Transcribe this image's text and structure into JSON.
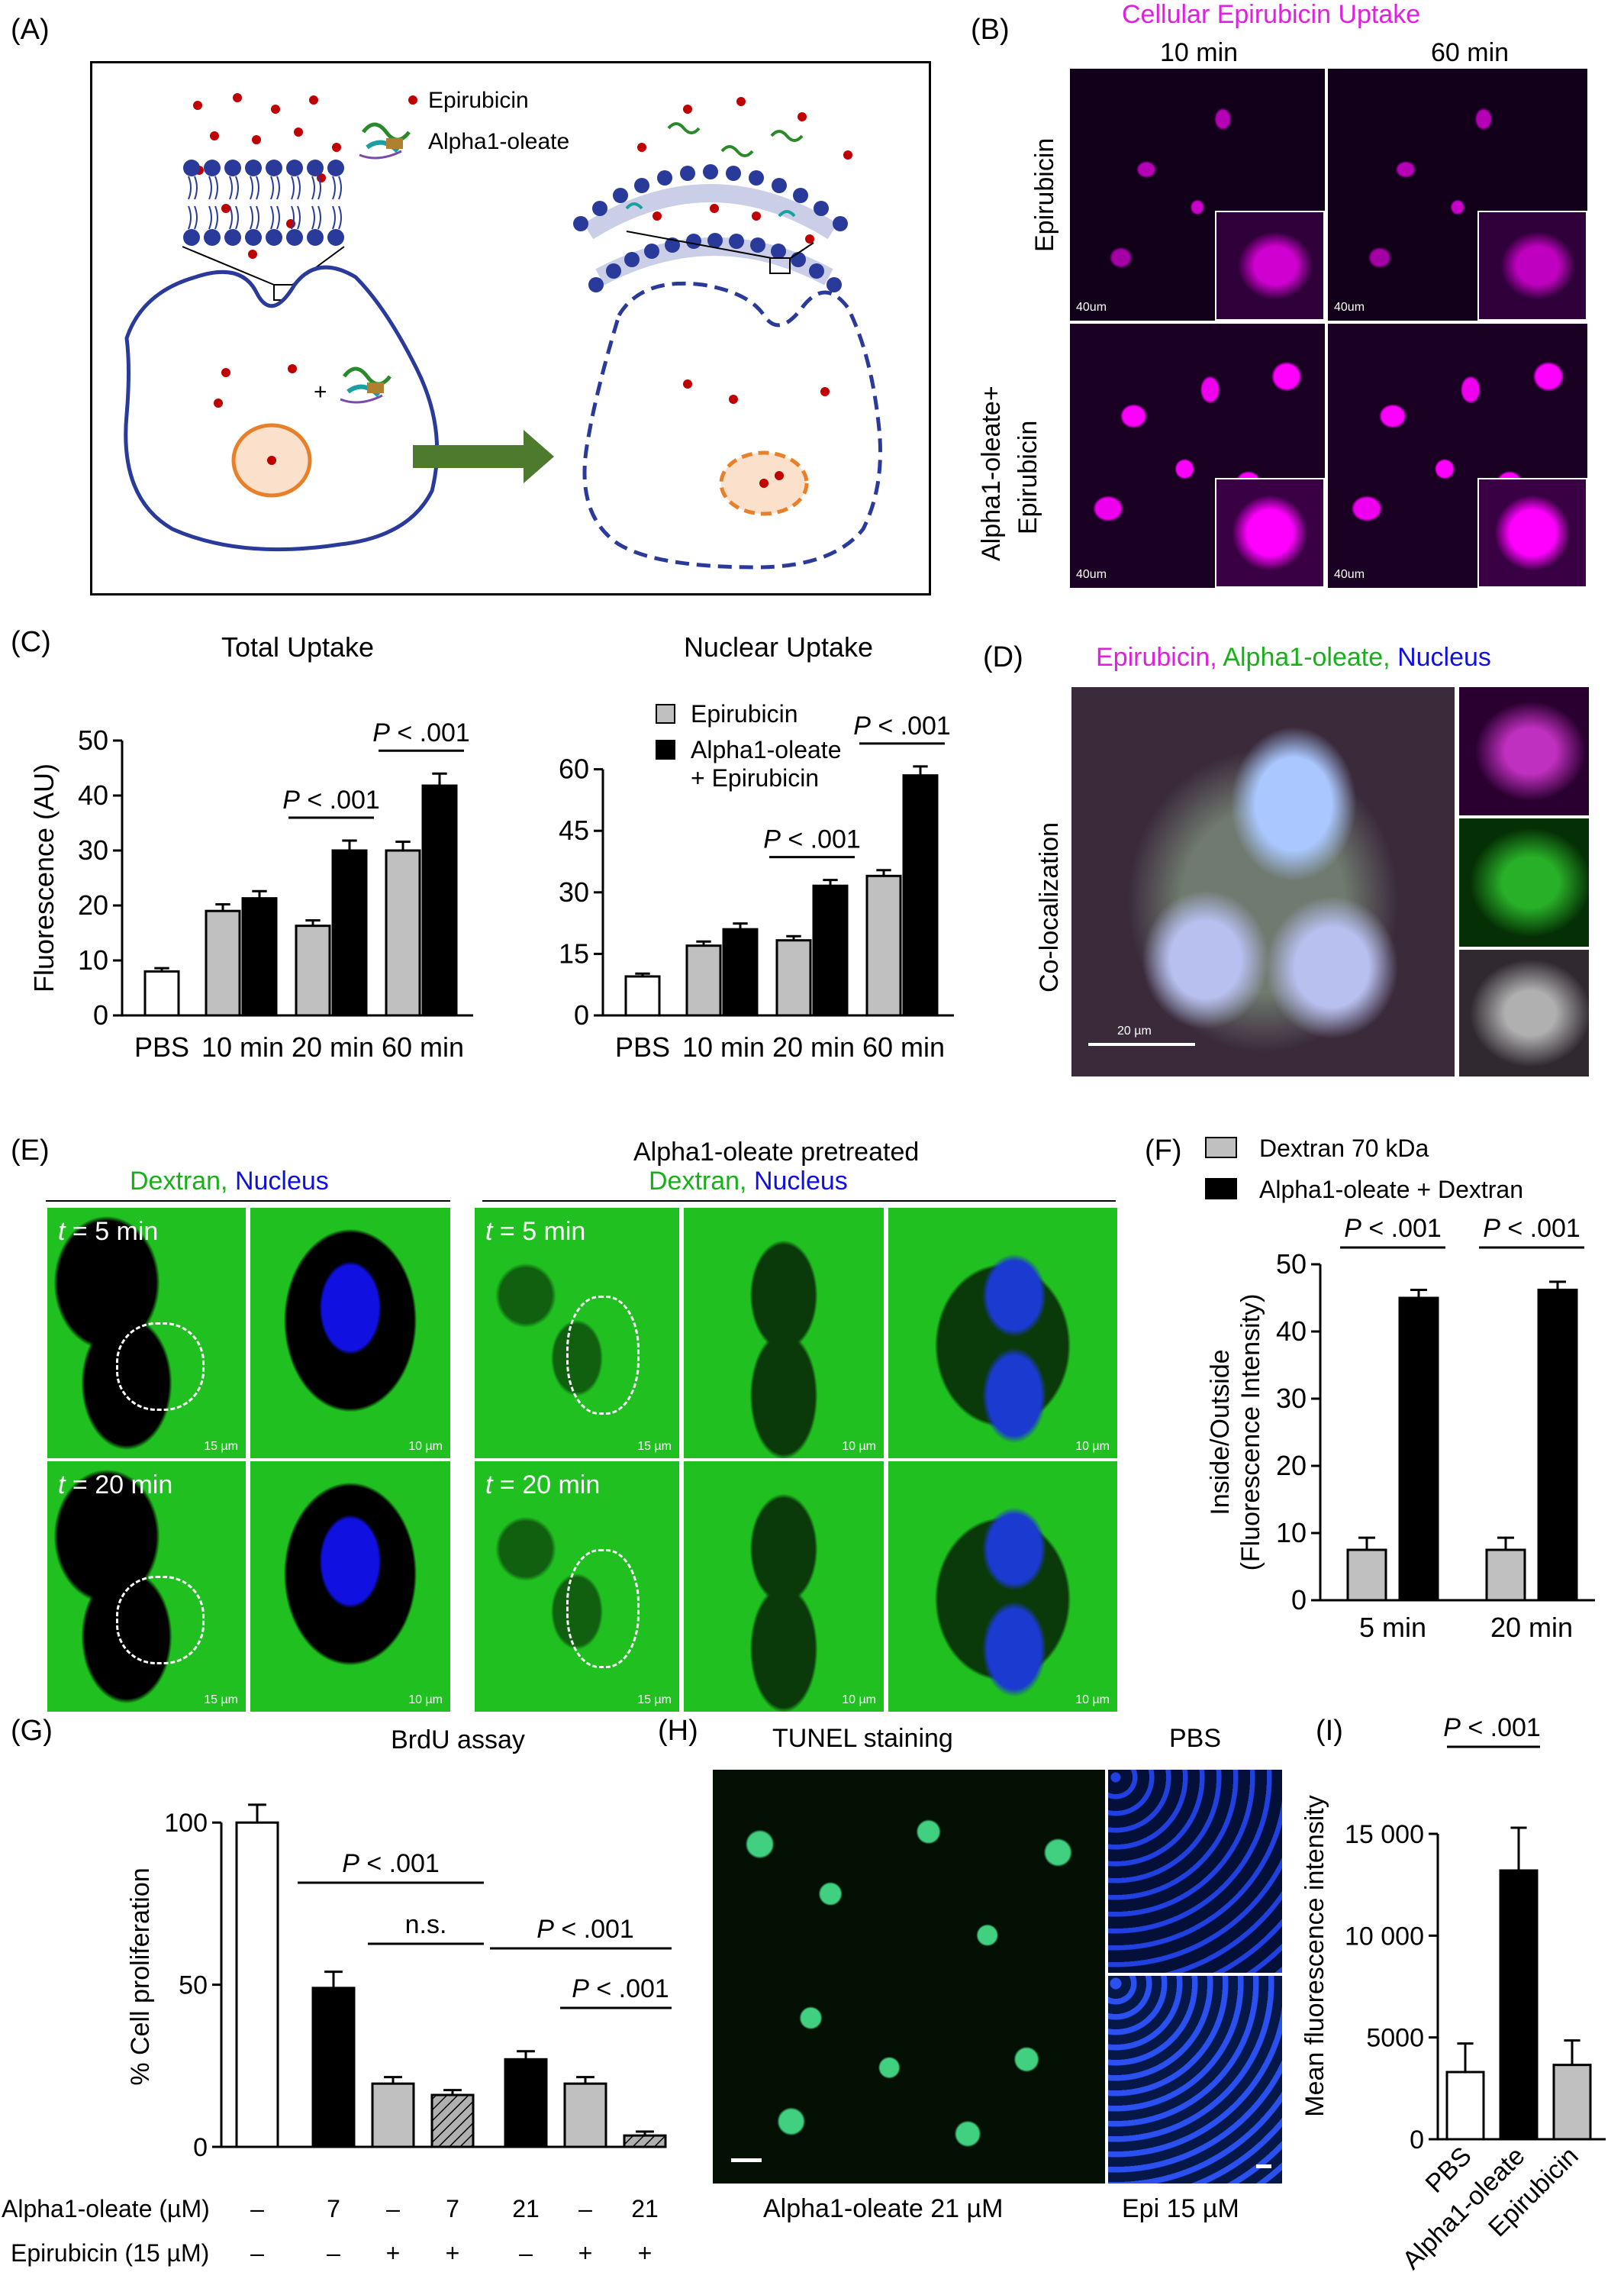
{
  "panel_labels": {
    "a": "(A)",
    "b": "(B)",
    "c": "(C)",
    "d": "(D)",
    "e": "(E)",
    "f": "(F)",
    "g": "(G)",
    "h": "(H)",
    "i": "(I)"
  },
  "panel_a": {
    "legend_epirubicin": "Epirubicin",
    "legend_alpha": "Alpha1-oleate",
    "plus": "+"
  },
  "panel_b": {
    "title": "Cellular Epirubicin Uptake",
    "col1": "10 min",
    "col2": "60 min",
    "row1": "Epirubicin",
    "row2_line1": "Alpha1-oleate+",
    "row2_line2": "Epirubicin",
    "scale": "40um",
    "title_color": "#e020e0"
  },
  "panel_d": {
    "title_epi": "Epirubicin,",
    "title_alpha": "Alpha1-oleate,",
    "title_nucleus": "Nucleus",
    "side": "Co-localization",
    "scale": "20 µm",
    "colors": {
      "epi": "#e020e0",
      "alpha": "#18b018",
      "nucleus": "#1010e0"
    }
  },
  "panel_e": {
    "left_dextran": "Dextran,",
    "left_nucleus": "Nucleus",
    "right_title": "Alpha1-oleate pretreated",
    "right_dextran": "Dextran,",
    "right_nucleus": "Nucleus",
    "t_var": "t",
    "t5": " = 5 min",
    "t20": " = 20 min",
    "scale15": "15 µm",
    "scale10": "10 µm"
  },
  "panel_h": {
    "title": "TUNEL staining",
    "pbs": "PBS",
    "bottom_left": "Alpha1-oleate 21 µM",
    "bottom_right": "Epi 15 µM"
  },
  "chart_data": [
    {
      "id": "C-total",
      "type": "bar",
      "title": "Total Uptake",
      "ylabel": "Fluorescence (AU)",
      "ylim": [
        0,
        50
      ],
      "yticks": [
        0,
        10,
        20,
        30,
        40,
        50
      ],
      "categories": [
        "PBS",
        "10 min",
        "20 min",
        "60 min"
      ],
      "series": [
        {
          "name": "PBS",
          "values": [
            8,
            null,
            null,
            null
          ],
          "errors": [
            0.6,
            null,
            null,
            null
          ],
          "color": "#ffffff"
        },
        {
          "name": "Epirubicin",
          "values": [
            null,
            19,
            16.3,
            30
          ],
          "errors": [
            null,
            1.2,
            1,
            1.6
          ],
          "color": "#c0c0c0"
        },
        {
          "name": "Alpha1-oleate + Epirubicin",
          "values": [
            null,
            21.3,
            30,
            41.8
          ],
          "errors": [
            null,
            1.3,
            1.8,
            2.2
          ],
          "color": "#000000"
        }
      ],
      "annotations": [
        {
          "text": "P < .001",
          "between": [
            "20 min"
          ]
        },
        {
          "text": "P < .001",
          "between": [
            "60 min"
          ]
        }
      ]
    },
    {
      "id": "C-nuclear",
      "type": "bar",
      "title": "Nuclear Uptake",
      "ylabel": "",
      "ylim": [
        0,
        67
      ],
      "yticks": [
        0,
        15,
        30,
        45,
        60
      ],
      "categories": [
        "PBS",
        "10 min",
        "20 min",
        "60 min"
      ],
      "legend": [
        "Epirubicin",
        "Alpha1-oleate",
        "+ Epirubicin"
      ],
      "series": [
        {
          "name": "PBS",
          "values": [
            9.5,
            null,
            null,
            null
          ],
          "errors": [
            0.7,
            null,
            null,
            null
          ],
          "color": "#ffffff"
        },
        {
          "name": "Epirubicin",
          "values": [
            null,
            17,
            18.3,
            34
          ],
          "errors": [
            null,
            1,
            1,
            1.4
          ],
          "color": "#c0c0c0"
        },
        {
          "name": "Alpha1-oleate + Epirubicin",
          "values": [
            null,
            21,
            31.6,
            58.5
          ],
          "errors": [
            null,
            1.4,
            1.4,
            2.2
          ],
          "color": "#000000"
        }
      ],
      "annotations": [
        {
          "text": "P < .001",
          "between": [
            "20 min"
          ]
        },
        {
          "text": "P < .001",
          "between": [
            "60 min"
          ]
        }
      ]
    },
    {
      "id": "F",
      "type": "bar",
      "ylabel": "Inside/Outside",
      "ylabel2": "(Fluorescence Intensity)",
      "ylim": [
        0,
        50
      ],
      "yticks": [
        0,
        10,
        20,
        30,
        40,
        50
      ],
      "categories": [
        "5 min",
        "20 min"
      ],
      "legend": [
        "Dextran 70 kDa",
        "Alpha1-oleate + Dextran"
      ],
      "series": [
        {
          "name": "Dextran 70 kDa",
          "values": [
            7.5,
            7.5
          ],
          "errors": [
            1.8,
            1.8
          ],
          "color": "#c0c0c0"
        },
        {
          "name": "Alpha1-oleate + Dextran",
          "values": [
            45,
            46.2
          ],
          "errors": [
            1.2,
            1.2
          ],
          "color": "#000000"
        }
      ],
      "annotations": [
        {
          "text": "P < .001"
        },
        {
          "text": "P < .001"
        }
      ]
    },
    {
      "id": "G",
      "type": "bar",
      "title": "BrdU assay",
      "ylabel": "% Cell proliferation",
      "ylim": [
        0,
        105
      ],
      "yticks": [
        0,
        50,
        100
      ],
      "row1_label": "Alpha1-oleate (µM)",
      "row2_label": "Epirubicin (15 µM)",
      "row1": [
        "–",
        "7",
        "–",
        "7",
        "21",
        "–",
        "21"
      ],
      "row2": [
        "–",
        "–",
        "+",
        "+",
        "–",
        "+",
        "+"
      ],
      "values": [
        100,
        49,
        19.5,
        16,
        27,
        19.5,
        3.5
      ],
      "errors": [
        5.5,
        5,
        2,
        1.5,
        2.5,
        2,
        1.2
      ],
      "colors": [
        "#ffffff",
        "#000000",
        "#c0c0c0",
        "hatch",
        "#000000",
        "#c0c0c0",
        "hatch"
      ],
      "annotations": [
        {
          "text": "P < .001"
        },
        {
          "text": "n.s."
        },
        {
          "text": "P < .001"
        },
        {
          "text": "P < .001"
        }
      ]
    },
    {
      "id": "I",
      "type": "bar",
      "ylabel": "Mean fluorescence intensity",
      "ylim": [
        0,
        18000
      ],
      "yticks": [
        0,
        5000,
        10000,
        15000
      ],
      "ytick_labels": [
        "0",
        "5000",
        "10 000",
        "15 000"
      ],
      "categories": [
        "PBS",
        "Alpha1-oleate",
        "Epirubicin"
      ],
      "values": [
        3300,
        13200,
        3650
      ],
      "errors": [
        1400,
        2100,
        1200
      ],
      "colors": [
        "#ffffff",
        "#000000",
        "#c0c0c0"
      ],
      "annotations": [
        {
          "text": "P < .001"
        }
      ]
    }
  ]
}
